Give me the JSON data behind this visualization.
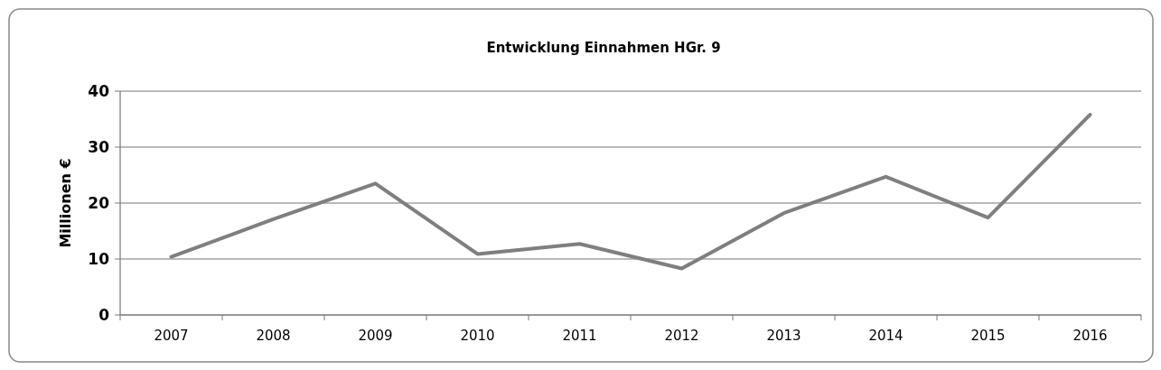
{
  "chart_data": {
    "type": "line",
    "title": "Entwicklung Einnahmen HGr. 9",
    "ylabel": "Millionen €",
    "categories": [
      "2007",
      "2008",
      "2009",
      "2010",
      "2011",
      "2012",
      "2013",
      "2014",
      "2015",
      "2016"
    ],
    "series": [
      {
        "color": "#7f7f7f",
        "values": [
          10.4,
          17.1,
          23.5,
          10.9,
          12.7,
          8.3,
          18.2,
          24.7,
          17.4,
          35.8
        ]
      }
    ],
    "ylim": [
      0,
      40
    ],
    "yticks": [
      0,
      10,
      20,
      30,
      40
    ],
    "grid": "y",
    "marker": "none",
    "line_style": "solid"
  }
}
